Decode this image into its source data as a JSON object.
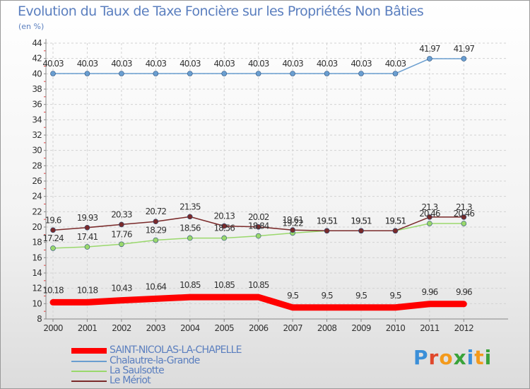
{
  "title": "Evolution du Taux de Taxe Foncière sur les Propriétés Non Bâties",
  "subtitle": "(en %)",
  "logo": {
    "letters": [
      "P",
      "r",
      "o",
      "x",
      "i",
      "t",
      "i"
    ],
    "colors": [
      "#3b8fd8",
      "#e0482c",
      "#f39a1c",
      "#39a33a",
      "#3b8fd8",
      "#f39a1c",
      "#39a33a"
    ]
  },
  "chart_data": {
    "type": "line",
    "title": "Evolution du Taux de Taxe Foncière sur les Propriétés Non Bâties",
    "ylabel": "(en %)",
    "xlabel": "",
    "ylim": [
      8,
      44
    ],
    "yticks": [
      8,
      10,
      12,
      14,
      16,
      18,
      20,
      22,
      24,
      26,
      28,
      30,
      32,
      34,
      36,
      38,
      40,
      42,
      44
    ],
    "grid": true,
    "legend": "bottom-left",
    "x": [
      "2000",
      "2001",
      "2002",
      "2003",
      "2004",
      "2005",
      "2006",
      "2007",
      "2008",
      "2009",
      "2010",
      "2011",
      "2012"
    ],
    "series": [
      {
        "name": "SAINT-NICOLAS-LA-CHAPELLE",
        "color": "#ff0000",
        "values": [
          10.18,
          10.18,
          10.43,
          10.64,
          10.85,
          10.85,
          10.85,
          9.5,
          9.5,
          9.5,
          9.5,
          9.96,
          9.96
        ],
        "labels": [
          "10.18",
          "10.18",
          "10.43",
          "10.64",
          "10.85",
          "10.85",
          "10.85",
          "9.5",
          "9.5",
          "9.5",
          "9.5",
          "9.96",
          "9.96"
        ]
      },
      {
        "name": "Chalautre-la-Grande",
        "color": "#6a9ed0",
        "values": [
          40.03,
          40.03,
          40.03,
          40.03,
          40.03,
          40.03,
          40.03,
          40.03,
          40.03,
          40.03,
          40.03,
          41.97,
          41.97
        ],
        "labels": [
          "40.03",
          "40.03",
          "40.03",
          "40.03",
          "40.03",
          "40.03",
          "40.03",
          "40.03",
          "40.03",
          "40.03",
          "40.03",
          "41.97",
          "41.97"
        ]
      },
      {
        "name": "La Saulsotte",
        "color": "#9ad86c",
        "values": [
          17.24,
          17.41,
          17.76,
          18.29,
          18.56,
          18.56,
          18.84,
          19.22,
          19.51,
          19.51,
          19.51,
          20.46,
          20.46
        ],
        "labels": [
          "17.24",
          "17.41",
          "17.76",
          "18.29",
          "18.56",
          "18.56",
          "18.84",
          "19.22",
          "19.51",
          "19.51",
          "19.51",
          "20.46",
          "20.46"
        ]
      },
      {
        "name": "Le Mériot",
        "color": "#7a2a2a",
        "values": [
          19.6,
          19.93,
          20.33,
          20.72,
          21.35,
          20.13,
          20.02,
          19.61,
          19.51,
          19.51,
          19.51,
          21.3,
          21.3
        ],
        "labels": [
          "19.6",
          "19.93",
          "20.33",
          "20.72",
          "21.35",
          "20.13",
          "20.02",
          "19.61",
          "19.51",
          "19.51",
          "19.51",
          "21.3",
          "21.3"
        ]
      }
    ]
  }
}
